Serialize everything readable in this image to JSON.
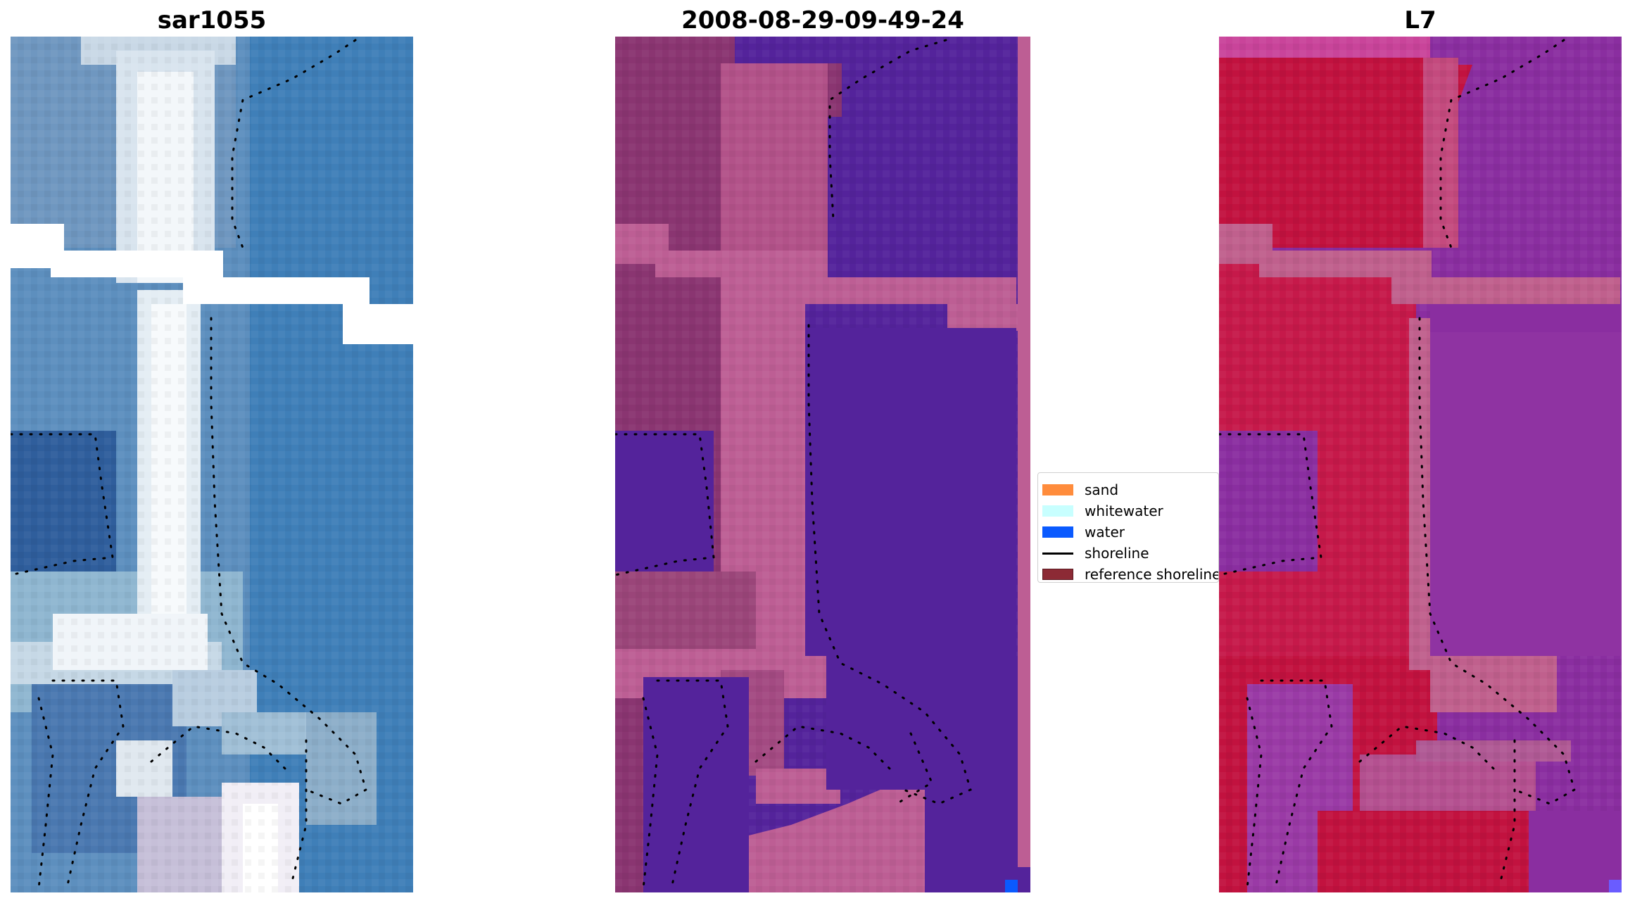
{
  "panels": [
    {
      "title": "sar1055",
      "type": "rgb-image"
    },
    {
      "title": "2008-08-29-09-49-24",
      "type": "classified-image"
    },
    {
      "title": "L7",
      "type": "index-image"
    }
  ],
  "legend": {
    "items": [
      {
        "label": "sand",
        "color": "#ff8c3c",
        "kind": "patch"
      },
      {
        "label": "whitewater",
        "color": "#c8ffff",
        "kind": "patch"
      },
      {
        "label": "water",
        "color": "#0a5aff",
        "kind": "patch"
      },
      {
        "label": "shoreline",
        "color": "#000000",
        "kind": "line"
      },
      {
        "label": "reference shoreline",
        "color": "#8c2a35",
        "kind": "patch"
      }
    ]
  },
  "colors": {
    "rgb_water": "#3f7fb8",
    "rgb_dark_water": "#2f5e9c",
    "rgb_sand": "#dfe7ef",
    "rgb_green": "#5f9fb0",
    "class_water": "#54239b",
    "class_land_pink": "#bd5e94",
    "class_land_dark": "#8a3571",
    "class_blue_px": "#0a5aff",
    "index_red": "#c2123f",
    "index_purple": "#8a2ea0",
    "index_pink_band": "#c0608d",
    "shoreline_dot": "#000000"
  }
}
